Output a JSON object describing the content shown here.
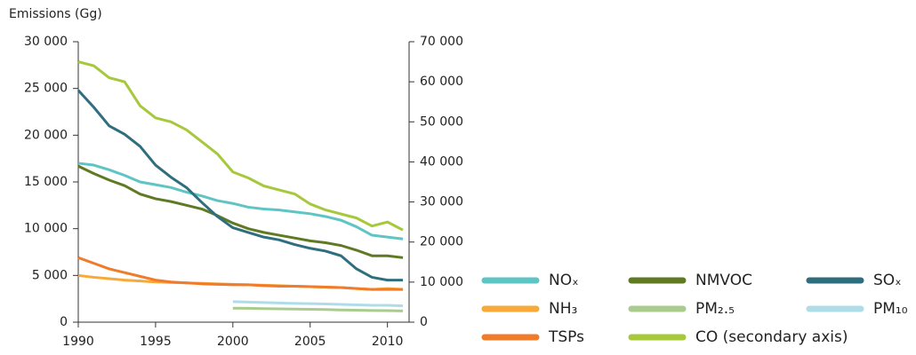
{
  "chart_data": {
    "type": "line",
    "y_label": "Emissions (Gg)",
    "x": [
      1990,
      1991,
      1992,
      1993,
      1994,
      1995,
      1996,
      1997,
      1998,
      1999,
      2000,
      2001,
      2002,
      2003,
      2004,
      2005,
      2006,
      2007,
      2008,
      2009,
      2010,
      2011
    ],
    "xlim": [
      1990,
      2011.4
    ],
    "xticks": [
      1990,
      1995,
      2000,
      2005,
      2010
    ],
    "ylim": [
      0,
      30000
    ],
    "yticks": [
      0,
      {
        "value": 5000,
        "label": "5 000"
      },
      {
        "value": 10000,
        "label": "10 000"
      },
      {
        "value": 15000,
        "label": "15 000"
      },
      {
        "value": 20000,
        "label": "20 000"
      },
      {
        "value": 25000,
        "label": "25 000"
      },
      {
        "value": 30000,
        "label": "30 000"
      }
    ],
    "y2lim": [
      0,
      70000
    ],
    "y2ticks": [
      0,
      {
        "value": 10000,
        "label": "10 000"
      },
      {
        "value": 20000,
        "label": "20 000"
      },
      {
        "value": 30000,
        "label": "30 000"
      },
      {
        "value": 40000,
        "label": "40 000"
      },
      {
        "value": 50000,
        "label": "50 000"
      },
      {
        "value": 60000,
        "label": "60 000"
      },
      {
        "value": 70000,
        "label": "70 000"
      }
    ],
    "series": [
      {
        "name": "NOₓ",
        "color": "#5fc4c4",
        "values": [
          17000,
          16800,
          16300,
          15700,
          15000,
          14700,
          14400,
          13900,
          13500,
          13000,
          12700,
          12300,
          12100,
          12000,
          11800,
          11600,
          11300,
          10900,
          10200,
          9300,
          9100,
          8900
        ]
      },
      {
        "name": "NMVOC",
        "color": "#5f7a23",
        "values": [
          16700,
          15900,
          15200,
          14600,
          13700,
          13200,
          12900,
          12500,
          12100,
          11400,
          10600,
          10000,
          9600,
          9300,
          9000,
          8700,
          8500,
          8200,
          7700,
          7100,
          7100,
          6900
        ]
      },
      {
        "name": "SOₓ",
        "color": "#2f6e7e",
        "values": [
          24800,
          23000,
          21000,
          20100,
          18800,
          16800,
          15500,
          14400,
          12800,
          11300,
          10100,
          9600,
          9100,
          8800,
          8300,
          7900,
          7600,
          7100,
          5700,
          4800,
          4500,
          4500
        ]
      },
      {
        "name": "NH₃",
        "color": "#f7a93a",
        "values": [
          5000,
          4800,
          4650,
          4500,
          4400,
          4300,
          4250,
          4200,
          4150,
          4100,
          4050,
          4000,
          3950,
          3900,
          3850,
          3800,
          3750,
          3700,
          3600,
          3500,
          3600,
          3500
        ]
      },
      {
        "name": "PM₂.₅",
        "color": "#a9cc8e",
        "values": [
          null,
          null,
          null,
          null,
          null,
          null,
          null,
          null,
          null,
          null,
          1500,
          1480,
          1450,
          1420,
          1400,
          1380,
          1350,
          1300,
          1280,
          1250,
          1230,
          1200
        ]
      },
      {
        "name": "PM₁₀",
        "color": "#aedde8",
        "values": [
          null,
          null,
          null,
          null,
          null,
          null,
          null,
          null,
          null,
          null,
          2200,
          2150,
          2100,
          2050,
          2000,
          1980,
          1950,
          1900,
          1850,
          1800,
          1800,
          1750
        ]
      },
      {
        "name": "TSPs",
        "color": "#f07b2a",
        "values": [
          6900,
          6300,
          5700,
          5300,
          4900,
          4500,
          4300,
          4200,
          4100,
          4050,
          4000,
          4000,
          3900,
          3850,
          3850,
          3800,
          3750,
          3700,
          3600,
          3500,
          3500,
          3500
        ]
      },
      {
        "name": "CO (secondary axis)",
        "color": "#a6c83a",
        "axis": "y2",
        "values": [
          65000,
          64000,
          61000,
          60000,
          54000,
          51000,
          50000,
          48000,
          45000,
          42000,
          37500,
          36000,
          34000,
          33000,
          32000,
          29500,
          28000,
          27000,
          26000,
          24000,
          25000,
          23000
        ]
      }
    ]
  }
}
